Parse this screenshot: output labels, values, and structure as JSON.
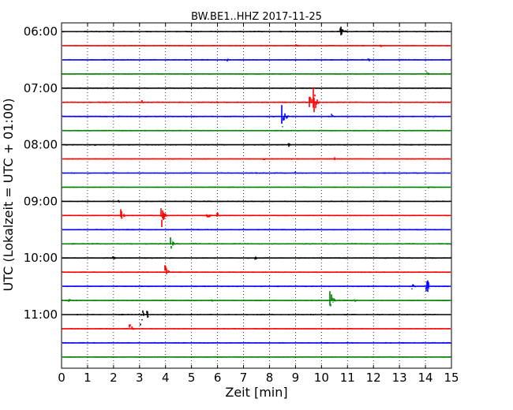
{
  "chart_data": {
    "type": "line",
    "title": "BW.BE1..HHZ 2017-11-25",
    "xlabel": "Zeit  [min]",
    "ylabel": "UTC (Lokalzeit = UTC + 01:00)",
    "xlim": [
      0,
      15
    ],
    "xticks": [
      "0",
      "1",
      "2",
      "3",
      "4",
      "5",
      "6",
      "7",
      "8",
      "9",
      "10",
      "11",
      "12",
      "13",
      "14",
      "15"
    ],
    "ytick_labels": [
      "06:00",
      "07:00",
      "08:00",
      "09:00",
      "10:00",
      "11:00"
    ],
    "grid": true,
    "color_cycle": [
      "#000000",
      "#ff0000",
      "#0000ff",
      "#008000"
    ],
    "traces": [
      {
        "start": "06:00",
        "events": [
          {
            "t": 10.75,
            "amp": 8
          },
          {
            "t": 10.95,
            "amp": 3
          }
        ]
      },
      {
        "start": "06:15",
        "events": [
          {
            "t": 9.05,
            "amp": 2
          },
          {
            "t": 12.3,
            "amp": 2
          }
        ]
      },
      {
        "start": "06:30",
        "events": [
          {
            "t": 6.4,
            "amp": 2
          },
          {
            "t": 11.8,
            "amp": 3
          }
        ]
      },
      {
        "start": "06:45",
        "events": [
          {
            "t": 14.05,
            "amp": 4
          }
        ]
      },
      {
        "start": "07:00",
        "events": []
      },
      {
        "start": "07:15",
        "events": [
          {
            "t": 3.1,
            "amp": 3
          },
          {
            "t": 6.0,
            "amp": 2
          },
          {
            "t": 9.55,
            "amp": 11
          },
          {
            "t": 9.7,
            "amp": 22
          }
        ]
      },
      {
        "start": "07:30",
        "events": [
          {
            "t": 2.2,
            "amp": 2
          },
          {
            "t": 8.5,
            "amp": 20
          },
          {
            "t": 10.4,
            "amp": 4
          },
          {
            "t": 14.3,
            "amp": 2
          }
        ]
      },
      {
        "start": "07:45",
        "events": []
      },
      {
        "start": "08:00",
        "events": [
          {
            "t": 1.3,
            "amp": 2
          },
          {
            "t": 8.75,
            "amp": 3
          }
        ]
      },
      {
        "start": "08:15",
        "events": [
          {
            "t": 7.8,
            "amp": 2
          },
          {
            "t": 10.5,
            "amp": 3
          }
        ]
      },
      {
        "start": "08:30",
        "events": [
          {
            "t": 9.0,
            "amp": 3
          }
        ]
      },
      {
        "start": "08:45",
        "events": [
          {
            "t": 14.1,
            "amp": 2
          }
        ]
      },
      {
        "start": "09:00",
        "events": [
          {
            "t": 2.2,
            "amp": 2
          }
        ]
      },
      {
        "start": "09:15",
        "events": [
          {
            "t": 2.3,
            "amp": 8
          },
          {
            "t": 3.85,
            "amp": 16
          },
          {
            "t": 5.6,
            "amp": 7
          },
          {
            "t": 6.0,
            "amp": 4
          }
        ]
      },
      {
        "start": "09:30",
        "events": []
      },
      {
        "start": "09:45",
        "events": [
          {
            "t": 4.2,
            "amp": 9
          },
          {
            "t": 7.3,
            "amp": 2
          }
        ]
      },
      {
        "start": "10:00",
        "events": [
          {
            "t": 2.0,
            "amp": 3
          },
          {
            "t": 7.45,
            "amp": 3
          }
        ]
      },
      {
        "start": "10:15",
        "events": [
          {
            "t": 4.0,
            "amp": 10
          }
        ]
      },
      {
        "start": "10:30",
        "events": [
          {
            "t": 5.1,
            "amp": 2
          },
          {
            "t": 13.5,
            "amp": 4
          },
          {
            "t": 14.05,
            "amp": 13
          }
        ]
      },
      {
        "start": "10:45",
        "events": [
          {
            "t": 0.3,
            "amp": 2
          },
          {
            "t": 5.8,
            "amp": 2
          },
          {
            "t": 10.35,
            "amp": 14
          },
          {
            "t": 11.3,
            "amp": 2
          }
        ]
      },
      {
        "start": "11:00",
        "events": [
          {
            "t": 3.05,
            "amp": 14
          },
          {
            "t": 3.3,
            "amp": 5
          }
        ]
      },
      {
        "start": "11:15",
        "events": [
          {
            "t": 2.65,
            "amp": 6
          }
        ]
      },
      {
        "start": "11:30",
        "events": []
      },
      {
        "start": "11:45",
        "events": []
      }
    ]
  }
}
